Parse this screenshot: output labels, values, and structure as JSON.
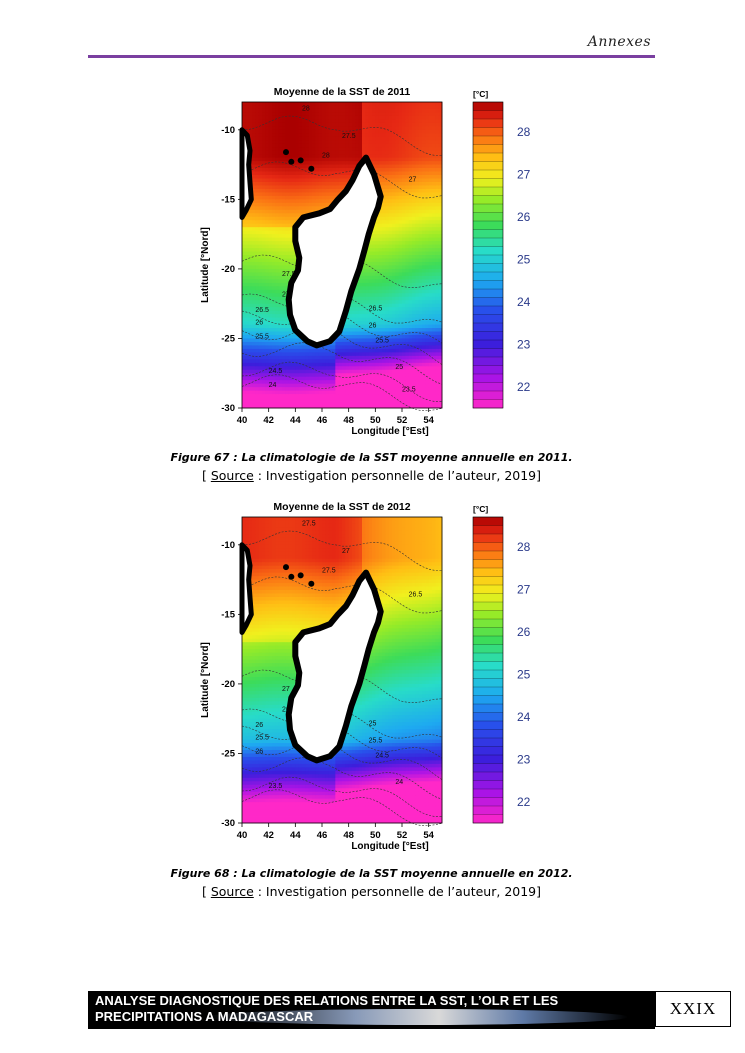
{
  "header": {
    "title": "Annexes"
  },
  "figures": [
    {
      "id": "fig67",
      "chart_data": {
        "type": "heatmap",
        "title": "Moyenne de la SST de 2011",
        "xlabel": "Longitude [°Est]",
        "ylabel": "Latitude [°Nord]",
        "x_ticks": [
          40,
          42,
          44,
          46,
          48,
          50,
          52,
          54
        ],
        "y_ticks": [
          -10,
          -15,
          -20,
          -25,
          -30
        ],
        "xlim": [
          40,
          55
        ],
        "ylim": [
          -30,
          -8
        ],
        "colorbar_unit": "[°C]",
        "colorbar_ticks": [
          22,
          23,
          24,
          25,
          26,
          27,
          28
        ],
        "colorbar_range": [
          21.5,
          28.7
        ],
        "contour_labels": [
          "28",
          "27.5",
          "28",
          "27",
          "27.5",
          "27",
          "26.5",
          "26",
          "25.5",
          "26",
          "26.5",
          "25.5",
          "25",
          "24.5",
          "24",
          "23.5"
        ]
      },
      "caption": "Figure 67 : La climatologie de la SST moyenne annuelle en 2011.",
      "source_label": "Source",
      "source_rest": " : Investigation personnelle de l’auteur, 2019]",
      "source_open": "[ "
    },
    {
      "id": "fig68",
      "chart_data": {
        "type": "heatmap",
        "title": "Moyenne de la SST de 2012",
        "xlabel": "Longitude [°Est]",
        "ylabel": "Latitude [°Nord]",
        "x_ticks": [
          40,
          42,
          44,
          46,
          48,
          50,
          52,
          54
        ],
        "y_ticks": [
          -10,
          -15,
          -20,
          -25,
          -30
        ],
        "xlim": [
          40,
          55
        ],
        "ylim": [
          -30,
          -8
        ],
        "colorbar_unit": "[°C]",
        "colorbar_ticks": [
          22,
          23,
          24,
          25,
          26,
          27,
          28
        ],
        "colorbar_range": [
          21.5,
          28.7
        ],
        "contour_labels": [
          "27.5",
          "27",
          "27.5",
          "26.5",
          "27",
          "26.5",
          "26",
          "25.5",
          "26",
          "25.5",
          "25",
          "24.5",
          "24",
          "23.5"
        ]
      },
      "caption": "Figure 68 : La climatologie de la SST moyenne annuelle en 2012.",
      "source_label": "Source",
      "source_rest": " : Investigation personnelle de l’auteur, 2019]",
      "source_open": "[ "
    }
  ],
  "footer": {
    "line1": "ANALYSE DIAGNOSTIQUE DES RELATIONS ENTRE LA SST, L’OLR ET LES",
    "line2": "PRECIPITATIONS A MADAGASCAR",
    "page": "XXIX"
  }
}
